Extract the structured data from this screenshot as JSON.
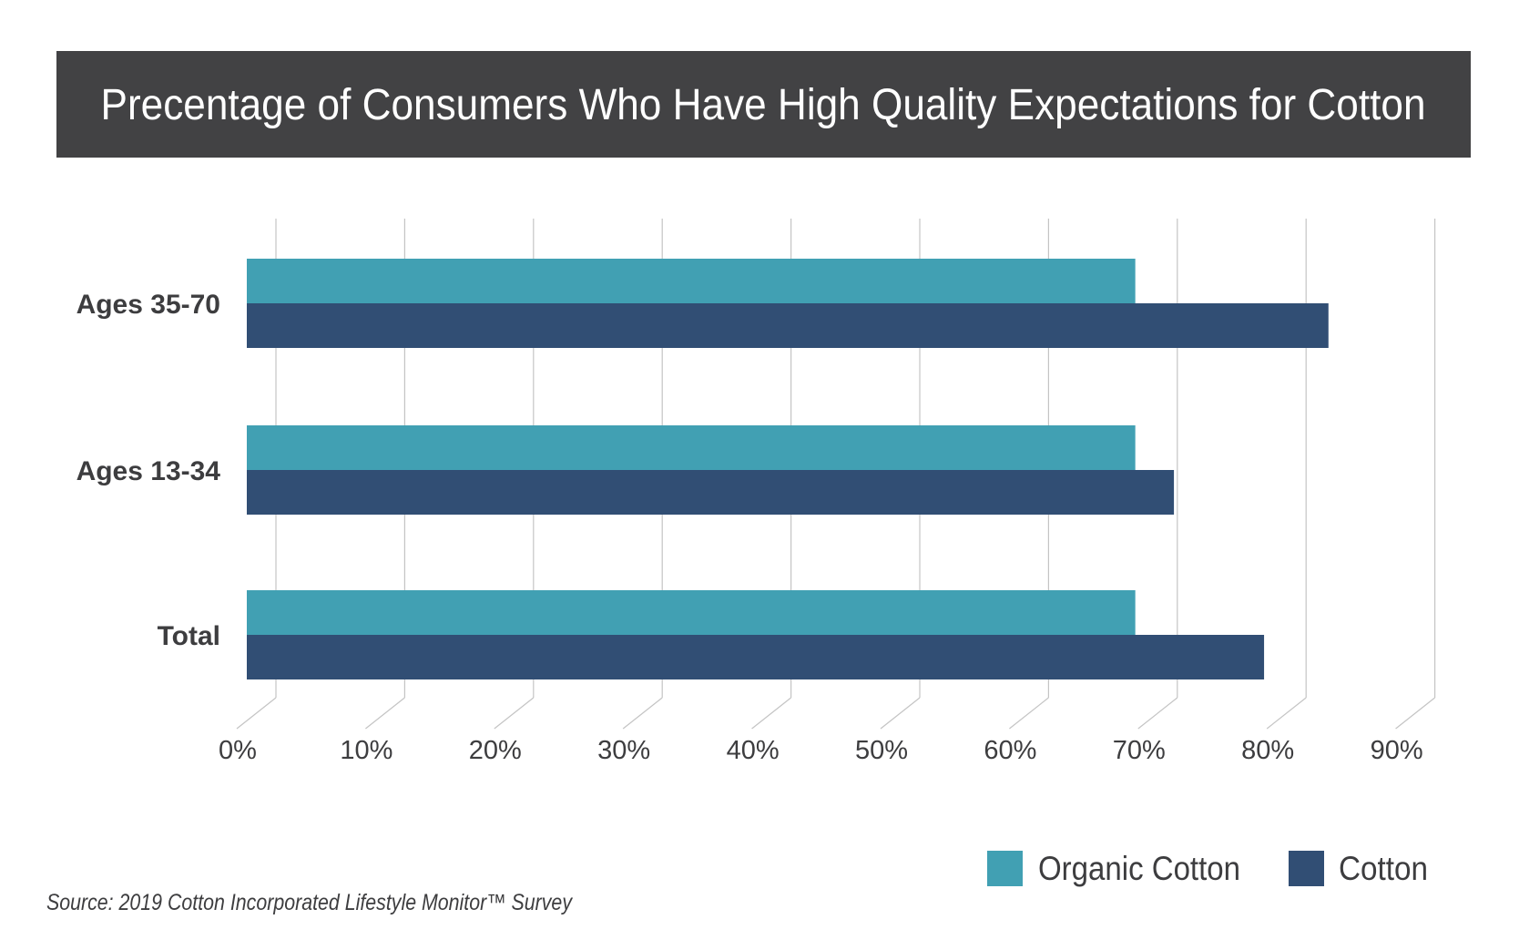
{
  "colors": {
    "organic": "#41a0b3",
    "cotton": "#314e74",
    "title_bg": "#424244",
    "text": "#3d3d3f",
    "grid": "#c4c4c4"
  },
  "chart_data": {
    "type": "bar",
    "orientation": "horizontal",
    "title": "Precentage of Consumers Who Have High Quality Expectations for Cotton",
    "categories": [
      "Ages 35-70",
      "Ages 13-34",
      "Total"
    ],
    "series": [
      {
        "name": "Organic Cotton",
        "values": [
          69,
          69,
          69
        ]
      },
      {
        "name": "Cotton",
        "values": [
          84,
          72,
          79
        ]
      }
    ],
    "xlim": [
      0,
      90
    ],
    "x_ticks": [
      "0%",
      "10%",
      "20%",
      "30%",
      "40%",
      "50%",
      "60%",
      "70%",
      "80%",
      "90%"
    ],
    "grid": true,
    "legend": "bottom-right",
    "source": "Source: 2019 Cotton Incorporated Lifestyle Monitor™ Survey"
  }
}
